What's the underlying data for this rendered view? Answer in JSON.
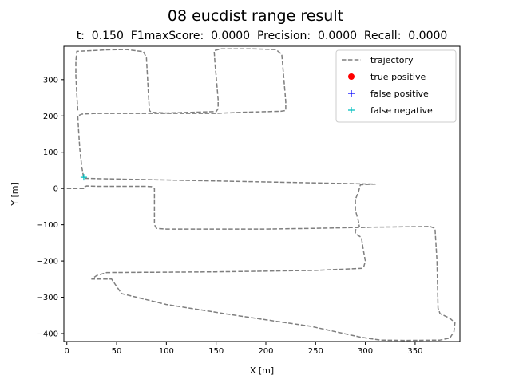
{
  "chart_data": {
    "type": "line",
    "title": "08 eucdist range result",
    "subtitle": "t:  0.150  F1maxScore:  0.0000  Precision:  0.0000  Recall:  0.0000",
    "xlabel": "X [m]",
    "ylabel": "Y [m]",
    "xlim": [
      -3,
      395
    ],
    "ylim": [
      -422,
      392
    ],
    "xticks": [
      0,
      50,
      100,
      150,
      200,
      250,
      300,
      350
    ],
    "yticks": [
      -400,
      -300,
      -200,
      -100,
      0,
      100,
      200,
      300
    ],
    "grid": false,
    "legend_position": "top-right",
    "legend": [
      {
        "label": "trajectory",
        "marker": "dashed-line",
        "color": "#7f7f7f"
      },
      {
        "label": "true positive",
        "marker": "circle",
        "color": "#ff0000"
      },
      {
        "label": "false positive",
        "marker": "plus",
        "color": "#0000ff"
      },
      {
        "label": "false negative",
        "marker": "plus",
        "color": "#00bfbf"
      }
    ],
    "series": [
      {
        "name": "trajectory",
        "color": "#7f7f7f",
        "points": [
          [
            0,
            0
          ],
          [
            17,
            0
          ],
          [
            18,
            5
          ],
          [
            20,
            7
          ],
          [
            30,
            6
          ],
          [
            80,
            6
          ],
          [
            85,
            5
          ],
          [
            88,
            0
          ],
          [
            88,
            -100
          ],
          [
            90,
            -110
          ],
          [
            100,
            -112
          ],
          [
            200,
            -112
          ],
          [
            250,
            -110
          ],
          [
            285,
            -108
          ],
          [
            295,
            -108
          ],
          [
            305,
            -107
          ],
          [
            365,
            -105
          ],
          [
            370,
            -110
          ],
          [
            372,
            -200
          ],
          [
            373,
            -330
          ],
          [
            375,
            -345
          ],
          [
            385,
            -358
          ],
          [
            390,
            -370
          ],
          [
            389,
            -395
          ],
          [
            385,
            -412
          ],
          [
            375,
            -418
          ],
          [
            340,
            -419
          ],
          [
            315,
            -418
          ],
          [
            295,
            -410
          ],
          [
            245,
            -380
          ],
          [
            170,
            -350
          ],
          [
            100,
            -320
          ],
          [
            55,
            -290
          ],
          [
            45,
            -250
          ],
          [
            25,
            -250
          ],
          [
            30,
            -240
          ],
          [
            40,
            -232
          ],
          [
            150,
            -230
          ],
          [
            250,
            -226
          ],
          [
            298,
            -220
          ],
          [
            300,
            -200
          ],
          [
            298,
            -170
          ],
          [
            296,
            -135
          ],
          [
            290,
            -125
          ],
          [
            290,
            -115
          ],
          [
            292,
            -108
          ],
          [
            294,
            -105
          ],
          [
            293,
            -90
          ],
          [
            290,
            -60
          ],
          [
            290,
            -30
          ],
          [
            293,
            -10
          ],
          [
            295,
            10
          ],
          [
            310,
            12
          ],
          [
            17,
            28
          ],
          [
            15,
            60
          ],
          [
            13,
            110
          ],
          [
            12,
            150
          ],
          [
            11,
            200
          ],
          [
            15,
            205
          ],
          [
            30,
            207
          ],
          [
            80,
            207
          ],
          [
            150,
            207
          ],
          [
            175,
            210
          ],
          [
            215,
            213
          ],
          [
            220,
            215
          ],
          [
            220,
            240
          ],
          [
            216,
            370
          ],
          [
            210,
            383
          ],
          [
            185,
            385
          ],
          [
            155,
            385
          ],
          [
            148,
            380
          ],
          [
            149,
            340
          ],
          [
            150,
            310
          ],
          [
            152,
            245
          ],
          [
            152,
            220
          ],
          [
            150,
            212
          ],
          [
            125,
            210
          ],
          [
            100,
            208
          ],
          [
            85,
            210
          ],
          [
            83,
            215
          ],
          [
            82,
            260
          ],
          [
            80,
            360
          ],
          [
            77,
            377
          ],
          [
            60,
            383
          ],
          [
            40,
            382
          ],
          [
            10,
            378
          ],
          [
            9,
            350
          ],
          [
            9,
            310
          ],
          [
            10,
            260
          ],
          [
            11,
            215
          ]
        ]
      },
      {
        "name": "false negative",
        "color": "#00bfbf",
        "points": [
          [
            17,
            31
          ]
        ]
      }
    ]
  }
}
